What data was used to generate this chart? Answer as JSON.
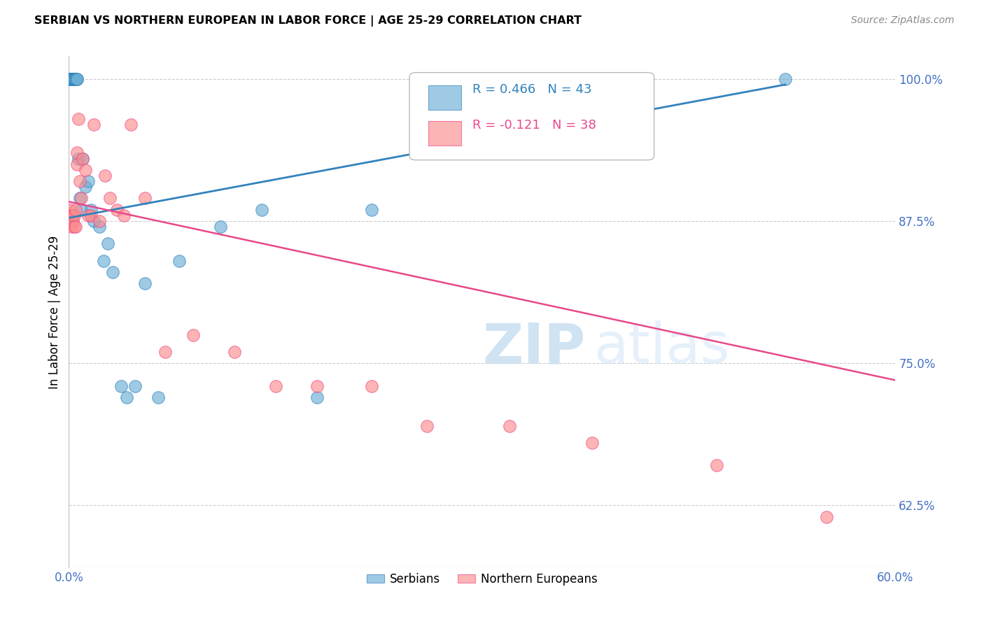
{
  "title": "SERBIAN VS NORTHERN EUROPEAN IN LABOR FORCE | AGE 25-29 CORRELATION CHART",
  "source": "Source: ZipAtlas.com",
  "ylabel": "In Labor Force | Age 25-29",
  "xlim": [
    0.0,
    0.6
  ],
  "ylim": [
    0.57,
    1.02
  ],
  "xticks": [
    0.0,
    0.1,
    0.2,
    0.3,
    0.4,
    0.5,
    0.6
  ],
  "xticklabels": [
    "0.0%",
    "",
    "",
    "",
    "",
    "",
    "60.0%"
  ],
  "yticks": [
    0.625,
    0.75,
    0.875,
    1.0
  ],
  "yticklabels": [
    "62.5%",
    "75.0%",
    "87.5%",
    "100.0%"
  ],
  "serbian_R": 0.466,
  "serbian_N": 43,
  "northern_R": -0.121,
  "northern_N": 38,
  "serbian_color": "#6baed6",
  "northern_color": "#fc8d8d",
  "serbian_line_color": "#3182bd",
  "northern_line_color": "#e8488a",
  "serbian_x": [
    0.001,
    0.001,
    0.001,
    0.001,
    0.002,
    0.002,
    0.002,
    0.002,
    0.003,
    0.003,
    0.003,
    0.003,
    0.004,
    0.004,
    0.004,
    0.005,
    0.005,
    0.005,
    0.006,
    0.006,
    0.007,
    0.008,
    0.009,
    0.01,
    0.012,
    0.014,
    0.016,
    0.018,
    0.022,
    0.025,
    0.028,
    0.032,
    0.038,
    0.042,
    0.048,
    0.055,
    0.065,
    0.08,
    0.11,
    0.14,
    0.18,
    0.22,
    0.52
  ],
  "serbian_y": [
    1.0,
    1.0,
    1.0,
    1.0,
    1.0,
    1.0,
    1.0,
    1.0,
    1.0,
    1.0,
    1.0,
    1.0,
    1.0,
    1.0,
    1.0,
    1.0,
    1.0,
    1.0,
    1.0,
    1.0,
    0.93,
    0.895,
    0.885,
    0.93,
    0.905,
    0.91,
    0.885,
    0.875,
    0.87,
    0.84,
    0.855,
    0.83,
    0.73,
    0.72,
    0.73,
    0.82,
    0.72,
    0.84,
    0.87,
    0.885,
    0.72,
    0.885,
    1.0
  ],
  "northern_x": [
    0.001,
    0.001,
    0.002,
    0.002,
    0.003,
    0.003,
    0.004,
    0.004,
    0.005,
    0.005,
    0.006,
    0.006,
    0.007,
    0.008,
    0.009,
    0.01,
    0.012,
    0.014,
    0.016,
    0.018,
    0.022,
    0.026,
    0.03,
    0.035,
    0.04,
    0.045,
    0.055,
    0.07,
    0.09,
    0.12,
    0.15,
    0.18,
    0.22,
    0.26,
    0.32,
    0.38,
    0.47,
    0.55
  ],
  "northern_y": [
    0.885,
    0.875,
    0.88,
    0.87,
    0.88,
    0.875,
    0.88,
    0.87,
    0.885,
    0.87,
    0.935,
    0.925,
    0.965,
    0.91,
    0.895,
    0.93,
    0.92,
    0.88,
    0.88,
    0.96,
    0.875,
    0.915,
    0.895,
    0.885,
    0.88,
    0.96,
    0.895,
    0.76,
    0.775,
    0.76,
    0.73,
    0.73,
    0.73,
    0.695,
    0.695,
    0.68,
    0.66,
    0.615
  ],
  "serbian_line": [
    0.001,
    0.52,
    0.878,
    0.995
  ],
  "northern_line": [
    0.0,
    0.6,
    0.892,
    0.735
  ]
}
